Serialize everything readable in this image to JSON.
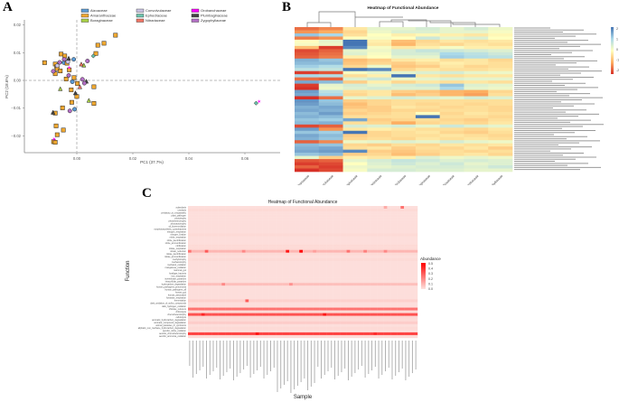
{
  "panels": {
    "a": "A",
    "b": "B",
    "c": "C"
  },
  "chart_data": [
    {
      "type": "scatter",
      "xlabel": "PC1 (37.7%)",
      "ylabel": "PC2 (18.6%)",
      "xlim": [
        -0.0187,
        0.0726
      ],
      "ylim": [
        -0.026,
        0.022
      ],
      "xticks": [
        "0.00",
        "0.02",
        "0.04",
        "0.06"
      ],
      "yticks": [
        "0.02",
        "0.01",
        "0.00",
        "−0.01",
        "−0.02"
      ],
      "grid": false,
      "reference_lines": "dashed at x=0 and y=0",
      "legend_placement": "top",
      "series": [
        {
          "name": "Aizoaceae",
          "color": "#5b9bd5",
          "marker": "circle",
          "points": [
            [
              -0.0011,
              0.0076
            ],
            [
              -0.0016,
              -0.0005
            ],
            [
              -0.0008,
              -0.0104
            ],
            [
              -0.0046,
              0.0064
            ]
          ]
        },
        {
          "name": "Amaranthaceae",
          "color": "#f0a830",
          "marker": "square",
          "points": [
            [
              0.0138,
              0.0163
            ],
            [
              0.0097,
              0.0134
            ],
            [
              0.0075,
              0.0127
            ],
            [
              0.0068,
              0.0097
            ],
            [
              -0.0115,
              0.0064
            ],
            [
              -0.0056,
              0.0095
            ],
            [
              -0.0043,
              0.0088
            ],
            [
              -0.0077,
              0.0059
            ],
            [
              -0.0072,
              0.0049
            ],
            [
              -0.007,
              0.0042
            ],
            [
              -0.0077,
              0.0024
            ],
            [
              -0.0027,
              0.0038
            ],
            [
              -0.001,
              0.001
            ],
            [
              -0.0038,
              0.0005
            ],
            [
              -0.0035,
              0.0062
            ],
            [
              0.0002,
              -0.0011
            ],
            [
              0.0061,
              -0.0023
            ],
            [
              -0.002,
              -0.0034
            ],
            [
              0.0,
              -0.0058
            ],
            [
              -0.0018,
              -0.0079
            ],
            [
              0.0061,
              -0.0083
            ],
            [
              -0.0051,
              -0.0099
            ],
            [
              -0.0077,
              -0.0118
            ],
            [
              -0.0074,
              -0.0164
            ],
            [
              -0.0048,
              -0.0179
            ],
            [
              -0.007,
              -0.0196
            ],
            [
              -0.0083,
              -0.0221
            ],
            [
              -0.0077,
              -0.0223
            ],
            [
              -0.0059,
              0.0034
            ]
          ]
        },
        {
          "name": "Boraginaceae",
          "color": "#a8d045",
          "marker": "triangle",
          "points": [
            [
              -0.0059,
              -0.003
            ],
            [
              0.0043,
              -0.0072
            ],
            [
              0.0025,
              0.0055
            ]
          ]
        },
        {
          "name": "Convolvulaceae",
          "color": "#c9c2e3",
          "marker": "circle",
          "points": [
            [
              -0.007,
              0.0053
            ],
            [
              -0.0032,
              0.0067
            ]
          ]
        },
        {
          "name": "Ephedraceae",
          "color": "#6cc4ad",
          "marker": "diamond",
          "points": [
            [
              0.0059,
              0.0088
            ],
            [
              0.064,
              -0.0082
            ]
          ]
        },
        {
          "name": "Nitrariaceae",
          "color": "#f07565",
          "marker": "triangle",
          "points": [
            [
              0.0016,
              0.0059
            ],
            [
              0.0011,
              -0.0023
            ]
          ]
        },
        {
          "name": "Orobanchaceae",
          "color": "#ff00ff",
          "marker": "star",
          "points": [
            [
              -0.0027,
              0.0045
            ],
            [
              -0.0081,
              -0.0212
            ],
            [
              0.0651,
              -0.0077
            ]
          ]
        },
        {
          "name": "Plumbaginaceae",
          "color": "#444444",
          "marker": "triangle",
          "points": [
            [
              -0.0029,
              0.008
            ],
            [
              -0.0085,
              -0.0115
            ],
            [
              0.0034,
              -0.0003
            ],
            [
              -0.0005,
              -0.0045
            ]
          ]
        },
        {
          "name": "Zygophyllaceae",
          "color": "#b36fc4",
          "marker": "circle",
          "points": [
            [
              -0.0061,
              0.0065
            ],
            [
              -0.0084,
              0.0033
            ],
            [
              -0.0029,
              0.0018
            ],
            [
              0.0038,
              0.007
            ],
            [
              0.002,
              0.0004
            ],
            [
              0.0027,
              -0.001
            ],
            [
              -0.0025,
              -0.011
            ],
            [
              -0.0045,
              0.0076
            ]
          ]
        }
      ]
    },
    {
      "type": "heatmap",
      "title": "Heatmap of Functional Abundance",
      "columns": [
        "Nitrariaceae",
        "Orobanchaceae",
        "Boraginaceae",
        "Ephedraceae",
        "Convolvulaceae",
        "Plumbaginaceae",
        "Aizoaceae",
        "Amaranthaceae",
        "Zygophyllaceae"
      ],
      "colorbar_ticks": [
        "2",
        "1",
        "0",
        "-1",
        "-2"
      ],
      "color_range": [
        -2,
        2
      ],
      "colors": {
        "low": "#d73027",
        "mid_low": "#fdae61",
        "mid": "#ffffbf",
        "mid_high": "#abd9e9",
        "high": "#4575b4"
      },
      "column_dendrogram": true,
      "values": [
        [
          -1.5,
          -1.3,
          -0.3,
          0.3,
          0.3,
          0.5,
          0.3,
          0.5,
          0.2
        ],
        [
          -1.2,
          -1.0,
          -0.5,
          0.2,
          0.4,
          0.4,
          0.3,
          0.3,
          0.1
        ],
        [
          1.2,
          1.0,
          -0.4,
          0.0,
          -0.2,
          -0.1,
          -0.2,
          -0.3,
          -0.1
        ],
        [
          -1.4,
          -1.2,
          0.0,
          0.1,
          0.0,
          0.6,
          0.3,
          0.4,
          0.0
        ],
        [
          0.0,
          0.3,
          2.5,
          -0.2,
          -0.8,
          -0.5,
          -0.3,
          -0.4,
          -0.3
        ],
        [
          0.1,
          0.2,
          2.3,
          -0.3,
          -0.9,
          -0.4,
          -0.5,
          -0.3,
          -0.4
        ],
        [
          -0.8,
          -1.9,
          1.8,
          0.1,
          -0.3,
          -0.2,
          0.1,
          -0.2,
          -0.2
        ],
        [
          -1.8,
          -1.6,
          0.3,
          0.2,
          0.5,
          0.7,
          0.6,
          0.5,
          0.4
        ],
        [
          -1.7,
          -1.5,
          0.4,
          0.1,
          0.5,
          0.5,
          1.0,
          0.8,
          0.6
        ],
        [
          -1.6,
          -1.4,
          -0.2,
          0.0,
          0.3,
          0.3,
          1.1,
          0.9,
          0.8
        ],
        [
          1.4,
          1.2,
          -0.8,
          -0.6,
          -0.3,
          -0.2,
          -0.4,
          -0.3,
          -0.5
        ],
        [
          1.3,
          1.3,
          -0.7,
          -0.5,
          -0.6,
          -0.4,
          -0.2,
          -0.3,
          -0.4
        ],
        [
          1.1,
          0.9,
          -0.5,
          0.2,
          -0.7,
          -0.6,
          -0.3,
          -0.5,
          -0.4
        ],
        [
          0.8,
          0.7,
          2.0,
          1.8,
          -0.5,
          -0.3,
          -0.4,
          -0.4,
          -0.3
        ],
        [
          -1.9,
          -1.7,
          0.1,
          0.3,
          0.3,
          0.4,
          0.5,
          0.3,
          0.2
        ],
        [
          1.0,
          0.9,
          -0.4,
          -0.2,
          2.3,
          -0.3,
          -0.4,
          -0.3,
          -0.3
        ],
        [
          -1.5,
          -1.6,
          0.4,
          0.6,
          0.2,
          0.3,
          0.4,
          0.3,
          0.3
        ],
        [
          1.5,
          1.3,
          -0.6,
          -0.2,
          -0.5,
          -0.3,
          -0.4,
          -0.3,
          -0.4
        ],
        [
          -1.9,
          0.3,
          0.5,
          0.3,
          0.5,
          0.6,
          1.2,
          0.4,
          0.3
        ],
        [
          -2.0,
          0.2,
          0.4,
          0.5,
          0.4,
          0.4,
          1.0,
          0.3,
          0.2
        ],
        [
          1.6,
          0.8,
          -0.4,
          -0.3,
          -0.6,
          -0.7,
          -0.9,
          -1.0,
          -0.5
        ],
        [
          1.5,
          1.0,
          -0.5,
          -0.3,
          -0.8,
          -0.6,
          -0.9,
          -1.1,
          -0.4
        ],
        [
          -2.0,
          -1.5,
          0.3,
          0.4,
          0.5,
          0.4,
          0.3,
          0.5,
          0.4
        ],
        [
          1.7,
          1.2,
          -0.6,
          -0.5,
          -0.4,
          -0.4,
          -0.4,
          -0.4,
          -0.4
        ],
        [
          1.6,
          1.3,
          -0.8,
          -0.5,
          -0.4,
          -0.5,
          -0.4,
          -0.5,
          -0.4
        ],
        [
          1.4,
          1.5,
          -0.7,
          -0.6,
          -0.3,
          -0.4,
          -0.5,
          -0.4,
          -0.5
        ],
        [
          1.5,
          1.4,
          -0.5,
          -0.6,
          -0.5,
          -0.5,
          -0.4,
          -0.4,
          -0.5
        ],
        [
          1.3,
          1.6,
          -0.6,
          -0.5,
          -0.4,
          0.0,
          -0.5,
          -0.3,
          -0.4
        ],
        [
          1.4,
          1.3,
          -0.4,
          -0.4,
          -0.4,
          2.3,
          -0.4,
          -0.4,
          -0.5
        ],
        [
          1.2,
          1.1,
          1.5,
          -0.6,
          -0.5,
          -0.4,
          -0.5,
          -0.6,
          -0.4
        ],
        [
          1.3,
          1.4,
          -0.4,
          -0.5,
          -1.0,
          -0.5,
          -0.4,
          -0.5,
          -0.3
        ],
        [
          -1.8,
          -1.6,
          0.5,
          0.4,
          0.5,
          0.3,
          0.6,
          0.4,
          0.3
        ],
        [
          1.6,
          -1.2,
          -0.3,
          -0.2,
          -0.3,
          -0.4,
          -0.4,
          -0.5,
          -0.3
        ],
        [
          1.2,
          1.1,
          2.3,
          -0.5,
          -0.4,
          -0.3,
          -0.5,
          -0.6,
          -0.4
        ],
        [
          1.5,
          1.3,
          -0.6,
          -0.5,
          -0.4,
          -0.4,
          -0.3,
          -0.4,
          -0.5
        ],
        [
          1.4,
          1.2,
          -0.5,
          -0.4,
          -0.5,
          -0.3,
          -0.4,
          -0.3,
          -0.4
        ],
        [
          -1.6,
          -1.3,
          0.2,
          0.3,
          0.4,
          0.3,
          0.5,
          0.3,
          0.2
        ],
        [
          1.3,
          1.2,
          -0.5,
          -0.6,
          -0.4,
          -0.5,
          -0.3,
          -0.4,
          -0.3
        ],
        [
          1.4,
          1.5,
          -0.4,
          -0.3,
          -0.6,
          -0.4,
          -0.5,
          -0.3,
          -0.6
        ],
        [
          1.5,
          1.6,
          1.8,
          -0.6,
          -0.7,
          -0.5,
          -0.4,
          -0.5,
          -0.4
        ],
        [
          1.2,
          1.3,
          -0.6,
          -0.5,
          -0.8,
          -0.6,
          -0.4,
          -0.3,
          -0.5
        ],
        [
          0.3,
          -0.6,
          -0.2,
          -0.3,
          -0.2,
          0.4,
          0.2,
          0.3,
          0.2
        ],
        [
          -1.7,
          -1.6,
          0.3,
          0.5,
          0.7,
          0.6,
          0.4,
          0.5,
          0.4
        ],
        [
          -1.9,
          -1.8,
          0.0,
          0.4,
          0.6,
          0.4,
          0.6,
          0.3,
          0.4
        ],
        [
          -1.6,
          -1.9,
          0.2,
          0.3,
          0.4,
          0.5,
          0.5,
          0.4,
          0.6
        ],
        [
          -2.0,
          -1.8,
          0.1,
          0.5,
          0.5,
          0.4,
          0.4,
          0.3,
          0.3
        ]
      ]
    },
    {
      "type": "heatmap",
      "title": "Heatmap of Functional Abundance",
      "xlabel": "Sample",
      "ylabel": "Function",
      "legend_title": "Abundance",
      "colorbar_ticks": [
        "0.5",
        "0.4",
        "0.3",
        "0.2",
        "0.1",
        "0.0"
      ],
      "color_range": [
        0,
        0.5
      ],
      "colors": {
        "low": "#fde3df",
        "high": "#ff0000"
      },
      "sample_count": 68,
      "rows": [
        "xylanolysis",
        "ureolysis",
        "predatory_or_exoparasitic",
        "plant_pathogen",
        "phototrophy",
        "photoheterotrophy",
        "photoautotrophy",
        "oil_bioremediation",
        "nonphotosynthetic_cyanobacteria",
        "nitrogen_respiration",
        "nitrogen_fixation",
        "nitrite_respiration",
        "nitrite_denitrification",
        "nitrite_ammonification",
        "nitrification",
        "nitrate_respiration",
        "nitrate_reduction",
        "nitrate_denitrification",
        "nitrate_ammonification",
        "methylotrophy",
        "methanotrophy",
        "methanol_oxidation",
        "manganese_oxidation",
        "mammal_gut",
        "knallgas_bacteria",
        "iron_respiration",
        "invertebrate_parasites",
        "intracellular_parasites",
        "hydrocarbon_degradation",
        "human_pathogens_pneumonia",
        "human_pathogens_all",
        "human_gut",
        "human_associated",
        "fumarate_respiration",
        "fermentation",
        "dark_oxidation_of_sulfur_compounds",
        "dark_hydrogen_oxidation",
        "chlorate_reducers",
        "chitinolysis",
        "chemoheterotrophy",
        "cellulolysis",
        "aromatic_hydrocarbon_degradation",
        "aromatic_compound_degradation",
        "animal_parasites_or_symbionts",
        "aliphatic_non_methane_hydrocarbon_degradation",
        "aerobic_nitrite_oxidation",
        "aerobic_chemoheterotrophy",
        "aerobic_ammonia_oxidation"
      ],
      "row_levels": [
        0.01,
        0.02,
        0.01,
        0.01,
        0.01,
        0.01,
        0.01,
        0.01,
        0.01,
        0.01,
        0.02,
        0.01,
        0.01,
        0.01,
        0.02,
        0.02,
        0.1,
        0.02,
        0.01,
        0.02,
        0.01,
        0.01,
        0.01,
        0.01,
        0.01,
        0.01,
        0.01,
        0.01,
        0.08,
        0.01,
        0.01,
        0.01,
        0.01,
        0.01,
        0.04,
        0.01,
        0.01,
        0.25,
        0.02,
        0.32,
        0.03,
        0.02,
        0.05,
        0.01,
        0.02,
        0.01,
        0.35,
        0.02
      ],
      "hotspots": [
        [
          0,
          63,
          0.25
        ],
        [
          0,
          58,
          0.12
        ],
        [
          16,
          0,
          0.25
        ],
        [
          16,
          5,
          0.3
        ],
        [
          16,
          16,
          0.2
        ],
        [
          16,
          29,
          0.45
        ],
        [
          16,
          33,
          0.5
        ],
        [
          16,
          37,
          0.15
        ],
        [
          16,
          47,
          0.25
        ],
        [
          16,
          52,
          0.22
        ],
        [
          16,
          58,
          0.2
        ],
        [
          28,
          10,
          0.2
        ],
        [
          28,
          30,
          0.18
        ],
        [
          34,
          17,
          0.3
        ],
        [
          39,
          4,
          0.42
        ],
        [
          39,
          40,
          0.45
        ],
        [
          46,
          20,
          0.45
        ],
        [
          46,
          55,
          0.4
        ]
      ]
    }
  ]
}
